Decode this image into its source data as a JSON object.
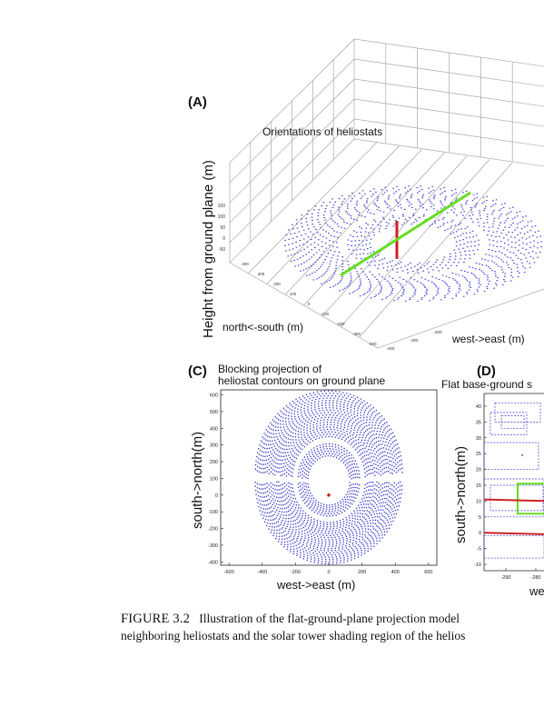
{
  "panel_a": {
    "letter": "(A)",
    "title": "Orientations of heliostats",
    "z_label": "Height from ground plane (m)",
    "ns_label": "north<-south (m)",
    "we_label": "west->east (m)",
    "z_ticks": [
      "150",
      "100",
      "50",
      "0",
      "-50"
    ],
    "ns_ticks": [
      "400",
      "300",
      "200",
      "100",
      "0",
      "-100",
      "-200",
      "-300",
      "-400"
    ],
    "we_ticks": [
      "-400",
      "-300",
      "-200"
    ],
    "colors": {
      "heliostat": "#3a3adc",
      "tower": "#cc2222",
      "sun": "#66dd22",
      "box": "#9a9a9a"
    }
  },
  "panel_c": {
    "letter": "(C)",
    "title_line1": "Blocking projection of",
    "title_line2": "heliostat contours on ground plane",
    "xlabel": "west->east (m)",
    "ylabel": "south->north(m)",
    "x_ticks": [
      "-600",
      "-400",
      "-200",
      "0",
      "200",
      "400",
      "600"
    ],
    "y_ticks": [
      "600",
      "500",
      "400",
      "300",
      "200",
      "100",
      "0",
      "-100",
      "-200",
      "-300",
      "-400"
    ]
  },
  "panel_d": {
    "letter": "(D)",
    "title": "Flat base-ground s",
    "xlabel": "we",
    "ylabel": "south->north(m)",
    "x_ticks": [
      "-290",
      "-280"
    ],
    "y_ticks": [
      "40",
      "35",
      "30",
      "25",
      "20",
      "15",
      "10",
      "5",
      "0",
      "-5",
      "-10"
    ]
  },
  "caption": {
    "figure_label": "FIGURE 3.2",
    "line1": "Illustration of the flat-ground-plane projection model",
    "line2": "neighboring heliostats and the solar tower shading region of the helios"
  }
}
